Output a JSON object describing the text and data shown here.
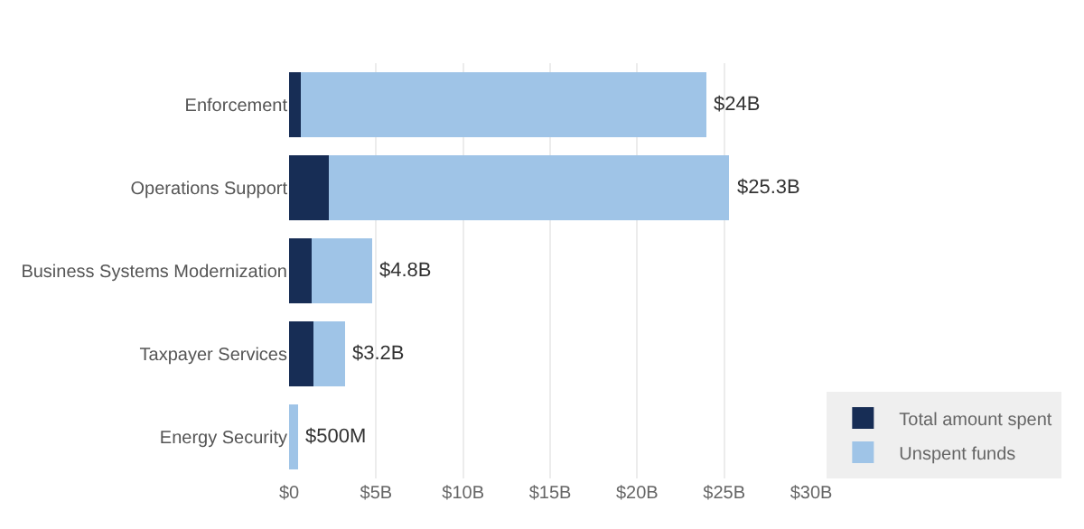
{
  "chart_data": {
    "type": "bar",
    "orientation": "horizontal",
    "stacked": true,
    "categories": [
      "Enforcement",
      "Operations Support",
      "Business Systems Modernization",
      "Taxpayer Services",
      "Energy Security"
    ],
    "series": [
      {
        "name": "Total amount spent",
        "color": "#172d55",
        "values": [
          0.7,
          2.3,
          1.3,
          1.4,
          0
        ]
      },
      {
        "name": "Unspent funds",
        "color": "#9fc4e7",
        "values": [
          23.3,
          23.0,
          3.5,
          1.8,
          0.5
        ]
      }
    ],
    "totals": [
      "$24B",
      "$25.3B",
      "$4.8B",
      "$3.2B",
      "$500M"
    ],
    "xlim": [
      0,
      30
    ],
    "xticks": [
      {
        "value": 0,
        "label": "$0"
      },
      {
        "value": 5,
        "label": "$5B"
      },
      {
        "value": 10,
        "label": "$10B"
      },
      {
        "value": 15,
        "label": "$15B"
      },
      {
        "value": 20,
        "label": "$20B"
      },
      {
        "value": 25,
        "label": "$25B"
      },
      {
        "value": 30,
        "label": "$30B"
      }
    ],
    "grid": "x",
    "legend": "bottom right"
  }
}
